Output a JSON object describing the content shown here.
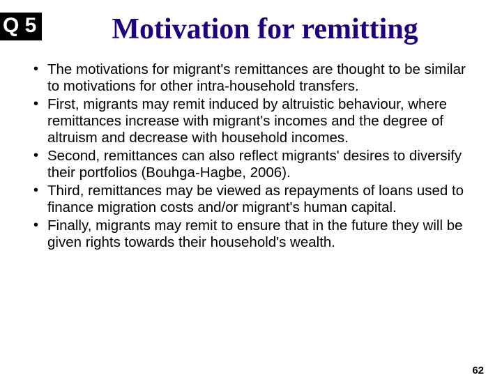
{
  "badge": "Q 5",
  "title": "Motivation for remitting",
  "bullets": [
    "The motivations for migrant's remittances are thought to be similar to motivations for other intra-household transfers.",
    "First, migrants may remit induced by altruistic behaviour, where remittances increase with migrant's incomes and the degree of altruism and decrease with household incomes.",
    "Second, remittances can also reflect migrants' desires to diversify their portfolios (Bouhga-Hagbe, 2006).",
    "Third, remittances may be viewed as repayments of loans used to finance migration costs and/or migrant's human capital.",
    "Finally, migrants may remit to ensure that in the future they will be given rights towards their household's wealth."
  ],
  "page_number": "62"
}
